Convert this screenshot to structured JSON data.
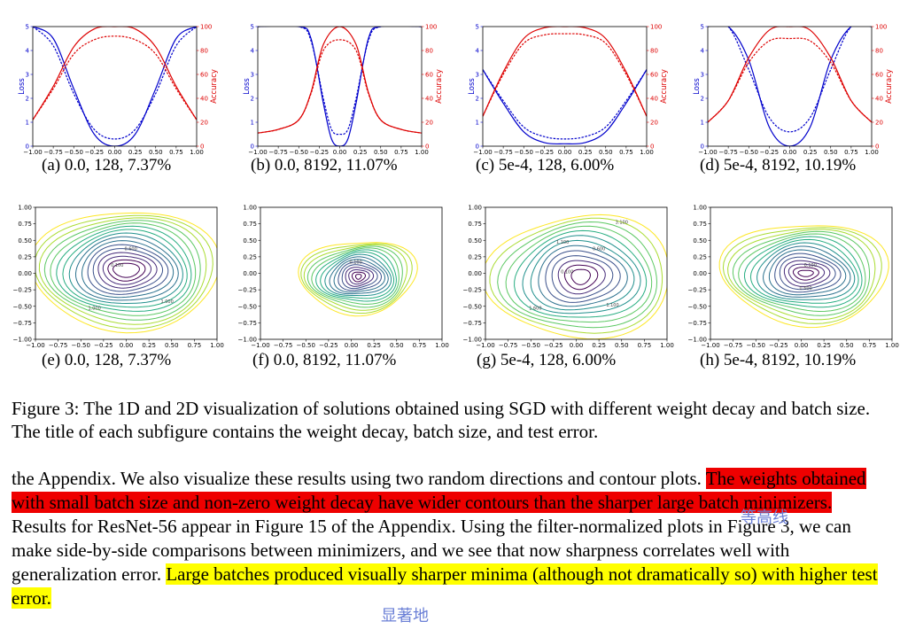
{
  "captions": {
    "a": "(a) 0.0, 128, 7.37%",
    "b": "(b) 0.0, 8192, 11.07%",
    "c": "(c) 5e-4, 128, 6.00%",
    "d": "(d) 5e-4, 8192, 10.19%",
    "e": "(e) 0.0, 128, 7.37%",
    "f": "(f) 0.0, 8192, 11.07%",
    "g": "(g) 5e-4, 128, 6.00%",
    "h": "(h) 5e-4, 8192, 10.19%"
  },
  "figure_caption": "Figure 3: The 1D and 2D visualization of solutions obtained using SGD with different weight decay and batch size. The title of each subfigure contains the weight decay, batch size, and test error.",
  "paragraph": {
    "part1": "the Appendix. We also visualize these results using two random directions and contour plots. ",
    "highlight_red": "The weights obtained with small batch size and non-zero weight decay have wider contours than the sharper large batch minimizers.",
    "part2": " Results for ResNet-56 appear in Figure 15 of the Appendix. Using the filter-normalized plots in Figure 3, we can make side-by-side comparisons between minimizers, and we see that now sharpness correlates well with generalization error. ",
    "highlight_yellow": "Large batches produced visually sharper minima (although not dramatically so) with higher test error."
  },
  "annotations": {
    "red_note": "等高线",
    "yellow_note": "显著地"
  },
  "colors": {
    "loss": "#0000cc",
    "accuracy": "#dd0000",
    "red_highlight": "#ee0000",
    "yellow_highlight": "#ffff00",
    "note": "#6a7fd6"
  },
  "chart_data": [
    {
      "type": "line",
      "panel": "a",
      "xlabel": "",
      "ylabel": "Loss",
      "ylabel_right": "Accuracy",
      "xlim": [
        -1,
        1
      ],
      "ylim": [
        0,
        5
      ],
      "ylim_right": [
        0,
        100
      ],
      "x_ticks": [
        "−1.00",
        "−0.75",
        "−0.50",
        "−0.25",
        "0.00",
        "0.25",
        "0.50",
        "0.75",
        "1.00"
      ],
      "y_ticks": [
        "0",
        "1",
        "2",
        "3",
        "4",
        "5"
      ],
      "y_ticks_right": [
        "0",
        "20",
        "40",
        "60",
        "80",
        "100"
      ],
      "series": [
        {
          "axis": "left",
          "style": "solid",
          "color": "#0000cc",
          "x": [
            -1,
            -0.75,
            -0.5,
            -0.25,
            0,
            0.25,
            0.5,
            0.75,
            1
          ],
          "y": [
            5,
            4.5,
            2.4,
            0.5,
            0,
            0.5,
            2.4,
            4.5,
            5
          ]
        },
        {
          "axis": "left",
          "style": "dashed",
          "color": "#0000cc",
          "x": [
            -1,
            -0.75,
            -0.5,
            -0.25,
            0,
            0.25,
            0.5,
            0.75,
            1
          ],
          "y": [
            5,
            4.2,
            2.2,
            0.7,
            0.3,
            0.7,
            2.2,
            4.2,
            5
          ]
        },
        {
          "axis": "right",
          "style": "solid",
          "color": "#dd0000",
          "x": [
            -1,
            -0.75,
            -0.5,
            -0.25,
            0,
            0.25,
            0.5,
            0.75,
            1
          ],
          "y": [
            22,
            50,
            83,
            98,
            100,
            98,
            83,
            50,
            22
          ]
        },
        {
          "axis": "right",
          "style": "dashed",
          "color": "#dd0000",
          "x": [
            -1,
            -0.75,
            -0.5,
            -0.25,
            0,
            0.25,
            0.5,
            0.75,
            1
          ],
          "y": [
            22,
            48,
            77,
            89,
            92,
            89,
            77,
            48,
            22
          ]
        }
      ]
    },
    {
      "type": "line",
      "panel": "b",
      "xlabel": "",
      "ylabel": "Loss",
      "ylabel_right": "Accuracy",
      "xlim": [
        -1,
        1
      ],
      "ylim": [
        0,
        5
      ],
      "ylim_right": [
        0,
        100
      ],
      "x_ticks": [
        "−1.00",
        "−0.75",
        "−0.50",
        "−0.25",
        "0.00",
        "0.25",
        "0.50",
        "0.75",
        "1.00"
      ],
      "y_ticks": [
        "0",
        "1",
        "2",
        "3",
        "4",
        "5"
      ],
      "y_ticks_right": [
        "0",
        "20",
        "40",
        "60",
        "80",
        "100"
      ],
      "series": [
        {
          "axis": "left",
          "style": "solid",
          "color": "#0000cc",
          "x": [
            -1,
            -0.5,
            -0.35,
            -0.2,
            -0.1,
            0,
            0.1,
            0.2,
            0.35,
            0.5,
            1
          ],
          "y": [
            5,
            5,
            4.5,
            1.8,
            0.3,
            0,
            0.3,
            1.8,
            4.5,
            5,
            5
          ]
        },
        {
          "axis": "left",
          "style": "dashed",
          "color": "#0000cc",
          "x": [
            -1,
            -0.5,
            -0.35,
            -0.2,
            -0.1,
            0,
            0.1,
            0.2,
            0.35,
            0.5,
            1
          ],
          "y": [
            5,
            5,
            4.4,
            2,
            0.7,
            0.5,
            0.7,
            2,
            4.4,
            5,
            5
          ]
        },
        {
          "axis": "right",
          "style": "solid",
          "color": "#dd0000",
          "x": [
            -1,
            -0.75,
            -0.5,
            -0.35,
            -0.2,
            0,
            0.2,
            0.35,
            0.5,
            0.75,
            1
          ],
          "y": [
            11,
            14,
            22,
            45,
            85,
            100,
            85,
            45,
            22,
            14,
            11
          ]
        },
        {
          "axis": "right",
          "style": "dashed",
          "color": "#dd0000",
          "x": [
            -1,
            -0.75,
            -0.5,
            -0.35,
            -0.2,
            0,
            0.2,
            0.35,
            0.5,
            0.75,
            1
          ],
          "y": [
            11,
            14,
            22,
            44,
            80,
            89,
            80,
            44,
            22,
            14,
            11
          ]
        }
      ]
    },
    {
      "type": "line",
      "panel": "c",
      "xlabel": "",
      "ylabel": "Loss",
      "ylabel_right": "Accuracy",
      "xlim": [
        -1,
        1
      ],
      "ylim": [
        0,
        5
      ],
      "ylim_right": [
        0,
        100
      ],
      "x_ticks": [
        "−1.00",
        "−0.75",
        "−0.50",
        "−0.25",
        "0.00",
        "0.25",
        "0.50",
        "0.75",
        "1.00"
      ],
      "y_ticks": [
        "0",
        "1",
        "2",
        "3",
        "4",
        "5"
      ],
      "y_ticks_right": [
        "0",
        "20",
        "40",
        "60",
        "80",
        "100"
      ],
      "series": [
        {
          "axis": "left",
          "style": "solid",
          "color": "#0000cc",
          "x": [
            -1,
            -0.75,
            -0.5,
            -0.25,
            0,
            0.25,
            0.5,
            0.75,
            1
          ],
          "y": [
            3.2,
            1.8,
            0.6,
            0.15,
            0.1,
            0.15,
            0.6,
            1.8,
            3.2
          ]
        },
        {
          "axis": "left",
          "style": "dashed",
          "color": "#0000cc",
          "x": [
            -1,
            -0.75,
            -0.5,
            -0.25,
            0,
            0.25,
            0.5,
            0.75,
            1
          ],
          "y": [
            3.2,
            1.9,
            0.8,
            0.4,
            0.3,
            0.4,
            0.8,
            1.9,
            3.2
          ]
        },
        {
          "axis": "right",
          "style": "solid",
          "color": "#dd0000",
          "x": [
            -1,
            -0.75,
            -0.5,
            -0.25,
            0,
            0.25,
            0.5,
            0.75,
            1
          ],
          "y": [
            25,
            62,
            90,
            99,
            100,
            99,
            90,
            62,
            25
          ]
        },
        {
          "axis": "right",
          "style": "dashed",
          "color": "#dd0000",
          "x": [
            -1,
            -0.75,
            -0.5,
            -0.25,
            0,
            0.25,
            0.5,
            0.75,
            1
          ],
          "y": [
            25,
            60,
            86,
            93,
            94,
            93,
            86,
            60,
            25
          ]
        }
      ]
    },
    {
      "type": "line",
      "panel": "d",
      "xlabel": "",
      "ylabel": "Loss",
      "ylabel_right": "Accuracy",
      "xlim": [
        -1,
        1
      ],
      "ylim": [
        0,
        5
      ],
      "ylim_right": [
        0,
        100
      ],
      "x_ticks": [
        "−1.00",
        "−0.75",
        "−0.50",
        "−0.25",
        "0.00",
        "0.25",
        "0.50",
        "0.75",
        "1.00"
      ],
      "y_ticks": [
        "0",
        "1",
        "2",
        "3",
        "4",
        "5"
      ],
      "y_ticks_right": [
        "0",
        "20",
        "40",
        "60",
        "80",
        "100"
      ],
      "series": [
        {
          "axis": "left",
          "style": "solid",
          "color": "#0000cc",
          "x": [
            -1,
            -0.75,
            -0.5,
            -0.25,
            0,
            0.25,
            0.5,
            0.75,
            1
          ],
          "y": [
            5,
            5,
            3.6,
            0.8,
            0,
            0.8,
            3.6,
            5,
            5
          ]
        },
        {
          "axis": "left",
          "style": "dashed",
          "color": "#0000cc",
          "x": [
            -1,
            -0.75,
            -0.5,
            -0.25,
            0,
            0.25,
            0.5,
            0.75,
            1
          ],
          "y": [
            5,
            5,
            3.2,
            1.2,
            0.6,
            1.2,
            3.2,
            5,
            5
          ]
        },
        {
          "axis": "right",
          "style": "solid",
          "color": "#dd0000",
          "x": [
            -1,
            -0.75,
            -0.5,
            -0.25,
            0,
            0.25,
            0.5,
            0.75,
            1
          ],
          "y": [
            20,
            38,
            74,
            97,
            100,
            97,
            74,
            38,
            20
          ]
        },
        {
          "axis": "right",
          "style": "dashed",
          "color": "#dd0000",
          "x": [
            -1,
            -0.75,
            -0.5,
            -0.25,
            0,
            0.25,
            0.5,
            0.75,
            1
          ],
          "y": [
            20,
            38,
            70,
            88,
            90,
            88,
            70,
            38,
            20
          ]
        }
      ]
    },
    {
      "type": "contour",
      "panel": "e",
      "xlim": [
        -1,
        1
      ],
      "ylim": [
        -1,
        1
      ],
      "x_ticks": [
        "−1.00",
        "−0.75",
        "−0.50",
        "−0.25",
        "0.00",
        "0.25",
        "0.50",
        "0.75",
        "1.00"
      ],
      "y_ticks": [
        "−1.00",
        "−0.75",
        "−0.50",
        "−0.25",
        "0.00",
        "0.25",
        "0.50",
        "0.75",
        "1.00"
      ],
      "contour_labels": [
        "0.100",
        "0.600",
        "1.000",
        "1.000"
      ]
    },
    {
      "type": "contour",
      "panel": "f",
      "xlim": [
        -1,
        1
      ],
      "ylim": [
        -1,
        1
      ],
      "x_ticks": [
        "−1.00",
        "−0.75",
        "−0.50",
        "−0.25",
        "0.00",
        "0.25",
        "0.50",
        "0.75",
        "1.00"
      ],
      "y_ticks": [
        "−1.00",
        "−0.75",
        "−0.50",
        "−0.25",
        "0.00",
        "0.25",
        "0.50",
        "0.75",
        "1.00"
      ],
      "contour_labels": [
        "0.100"
      ]
    },
    {
      "type": "contour",
      "panel": "g",
      "xlim": [
        -1,
        1
      ],
      "ylim": [
        -1,
        1
      ],
      "x_ticks": [
        "−1.00",
        "−0.75",
        "−0.50",
        "−0.25",
        "0.00",
        "0.25",
        "0.50",
        "0.75",
        "1.00"
      ],
      "y_ticks": [
        "−1.00",
        "−0.75",
        "−0.50",
        "−0.25",
        "0.00",
        "0.25",
        "0.50",
        "0.75",
        "1.00"
      ],
      "contour_labels": [
        "0.100",
        "0.600",
        "1.100",
        "1.100",
        "1.600",
        "3.100"
      ]
    },
    {
      "type": "contour",
      "panel": "h",
      "xlim": [
        -1,
        1
      ],
      "ylim": [
        -1,
        1
      ],
      "x_ticks": [
        "−1.00",
        "−0.75",
        "−0.50",
        "−0.25",
        "0.00",
        "0.25",
        "0.50",
        "0.75",
        "1.00"
      ],
      "y_ticks": [
        "−1.00",
        "−0.75",
        "−0.50",
        "−0.25",
        "0.00",
        "0.25",
        "0.50",
        "0.75",
        "1.00"
      ],
      "contour_labels": [
        "0.100",
        "0.600"
      ]
    }
  ]
}
